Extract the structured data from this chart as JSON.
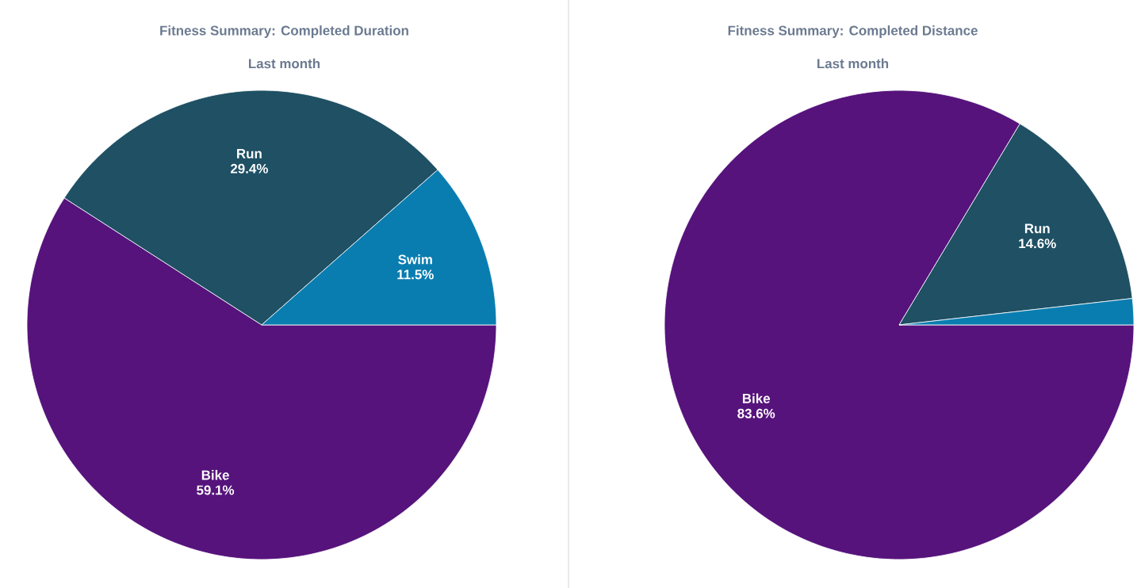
{
  "chart_data": [
    {
      "type": "pie",
      "title": "Fitness Summary: Completed Duration",
      "subtitle": "Last month",
      "categories": [
        "Bike",
        "Run",
        "Swim"
      ],
      "values": [
        59.1,
        29.4,
        11.5
      ],
      "colors": [
        "#56137c",
        "#1f5064",
        "#0a7db0"
      ],
      "value_labels": [
        "59.1%",
        "29.4%",
        "11.5%"
      ]
    },
    {
      "type": "pie",
      "title": "Fitness Summary: Completed Distance",
      "subtitle": "Last month",
      "categories": [
        "Bike",
        "Run",
        null
      ],
      "values": [
        83.6,
        14.6,
        1.8
      ],
      "colors": [
        "#56137c",
        "#1f5064",
        "#0a7db0"
      ],
      "value_labels": [
        "83.6%",
        "14.6%",
        null
      ]
    }
  ]
}
